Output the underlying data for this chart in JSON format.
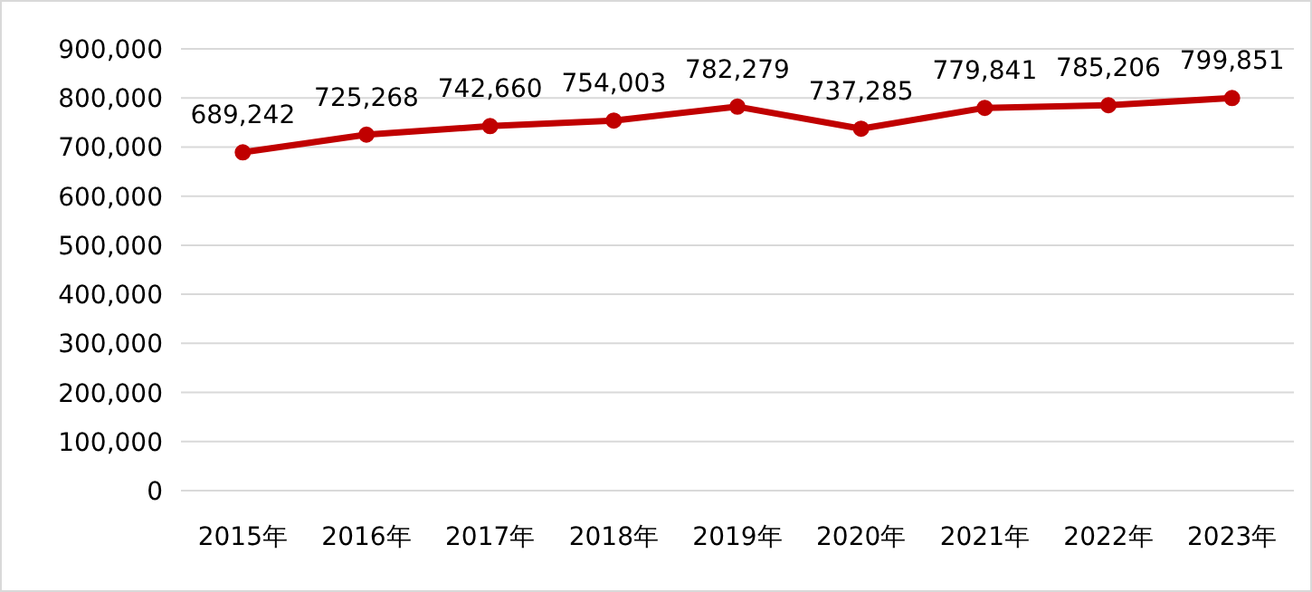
{
  "chart_data": {
    "type": "line",
    "categories": [
      "2015年",
      "2016年",
      "2017年",
      "2018年",
      "2019年",
      "2020年",
      "2021年",
      "2022年",
      "2023年"
    ],
    "series": [
      {
        "color": "#c00000",
        "values": [
          689242,
          725268,
          742660,
          754003,
          782279,
          737285,
          779841,
          785206,
          799851
        ],
        "value_labels": [
          "689,242",
          "725,268",
          "742,660",
          "754,003",
          "782,279",
          "737,285",
          "779,841",
          "785,206",
          "799,851"
        ]
      }
    ],
    "ylim": [
      0,
      900000
    ],
    "yticks": [
      {
        "value": 0,
        "label": "0"
      },
      {
        "value": 100000,
        "label": "100,000"
      },
      {
        "value": 200000,
        "label": "200,000"
      },
      {
        "value": 300000,
        "label": "300,000"
      },
      {
        "value": 400000,
        "label": "400,000"
      },
      {
        "value": 500000,
        "label": "500,000"
      },
      {
        "value": 600000,
        "label": "600,000"
      },
      {
        "value": 700000,
        "label": "700,000"
      },
      {
        "value": 800000,
        "label": "800,000"
      },
      {
        "value": 900000,
        "label": "900,000"
      }
    ],
    "grid": "y",
    "marker": "circle",
    "line_style": "solid"
  }
}
